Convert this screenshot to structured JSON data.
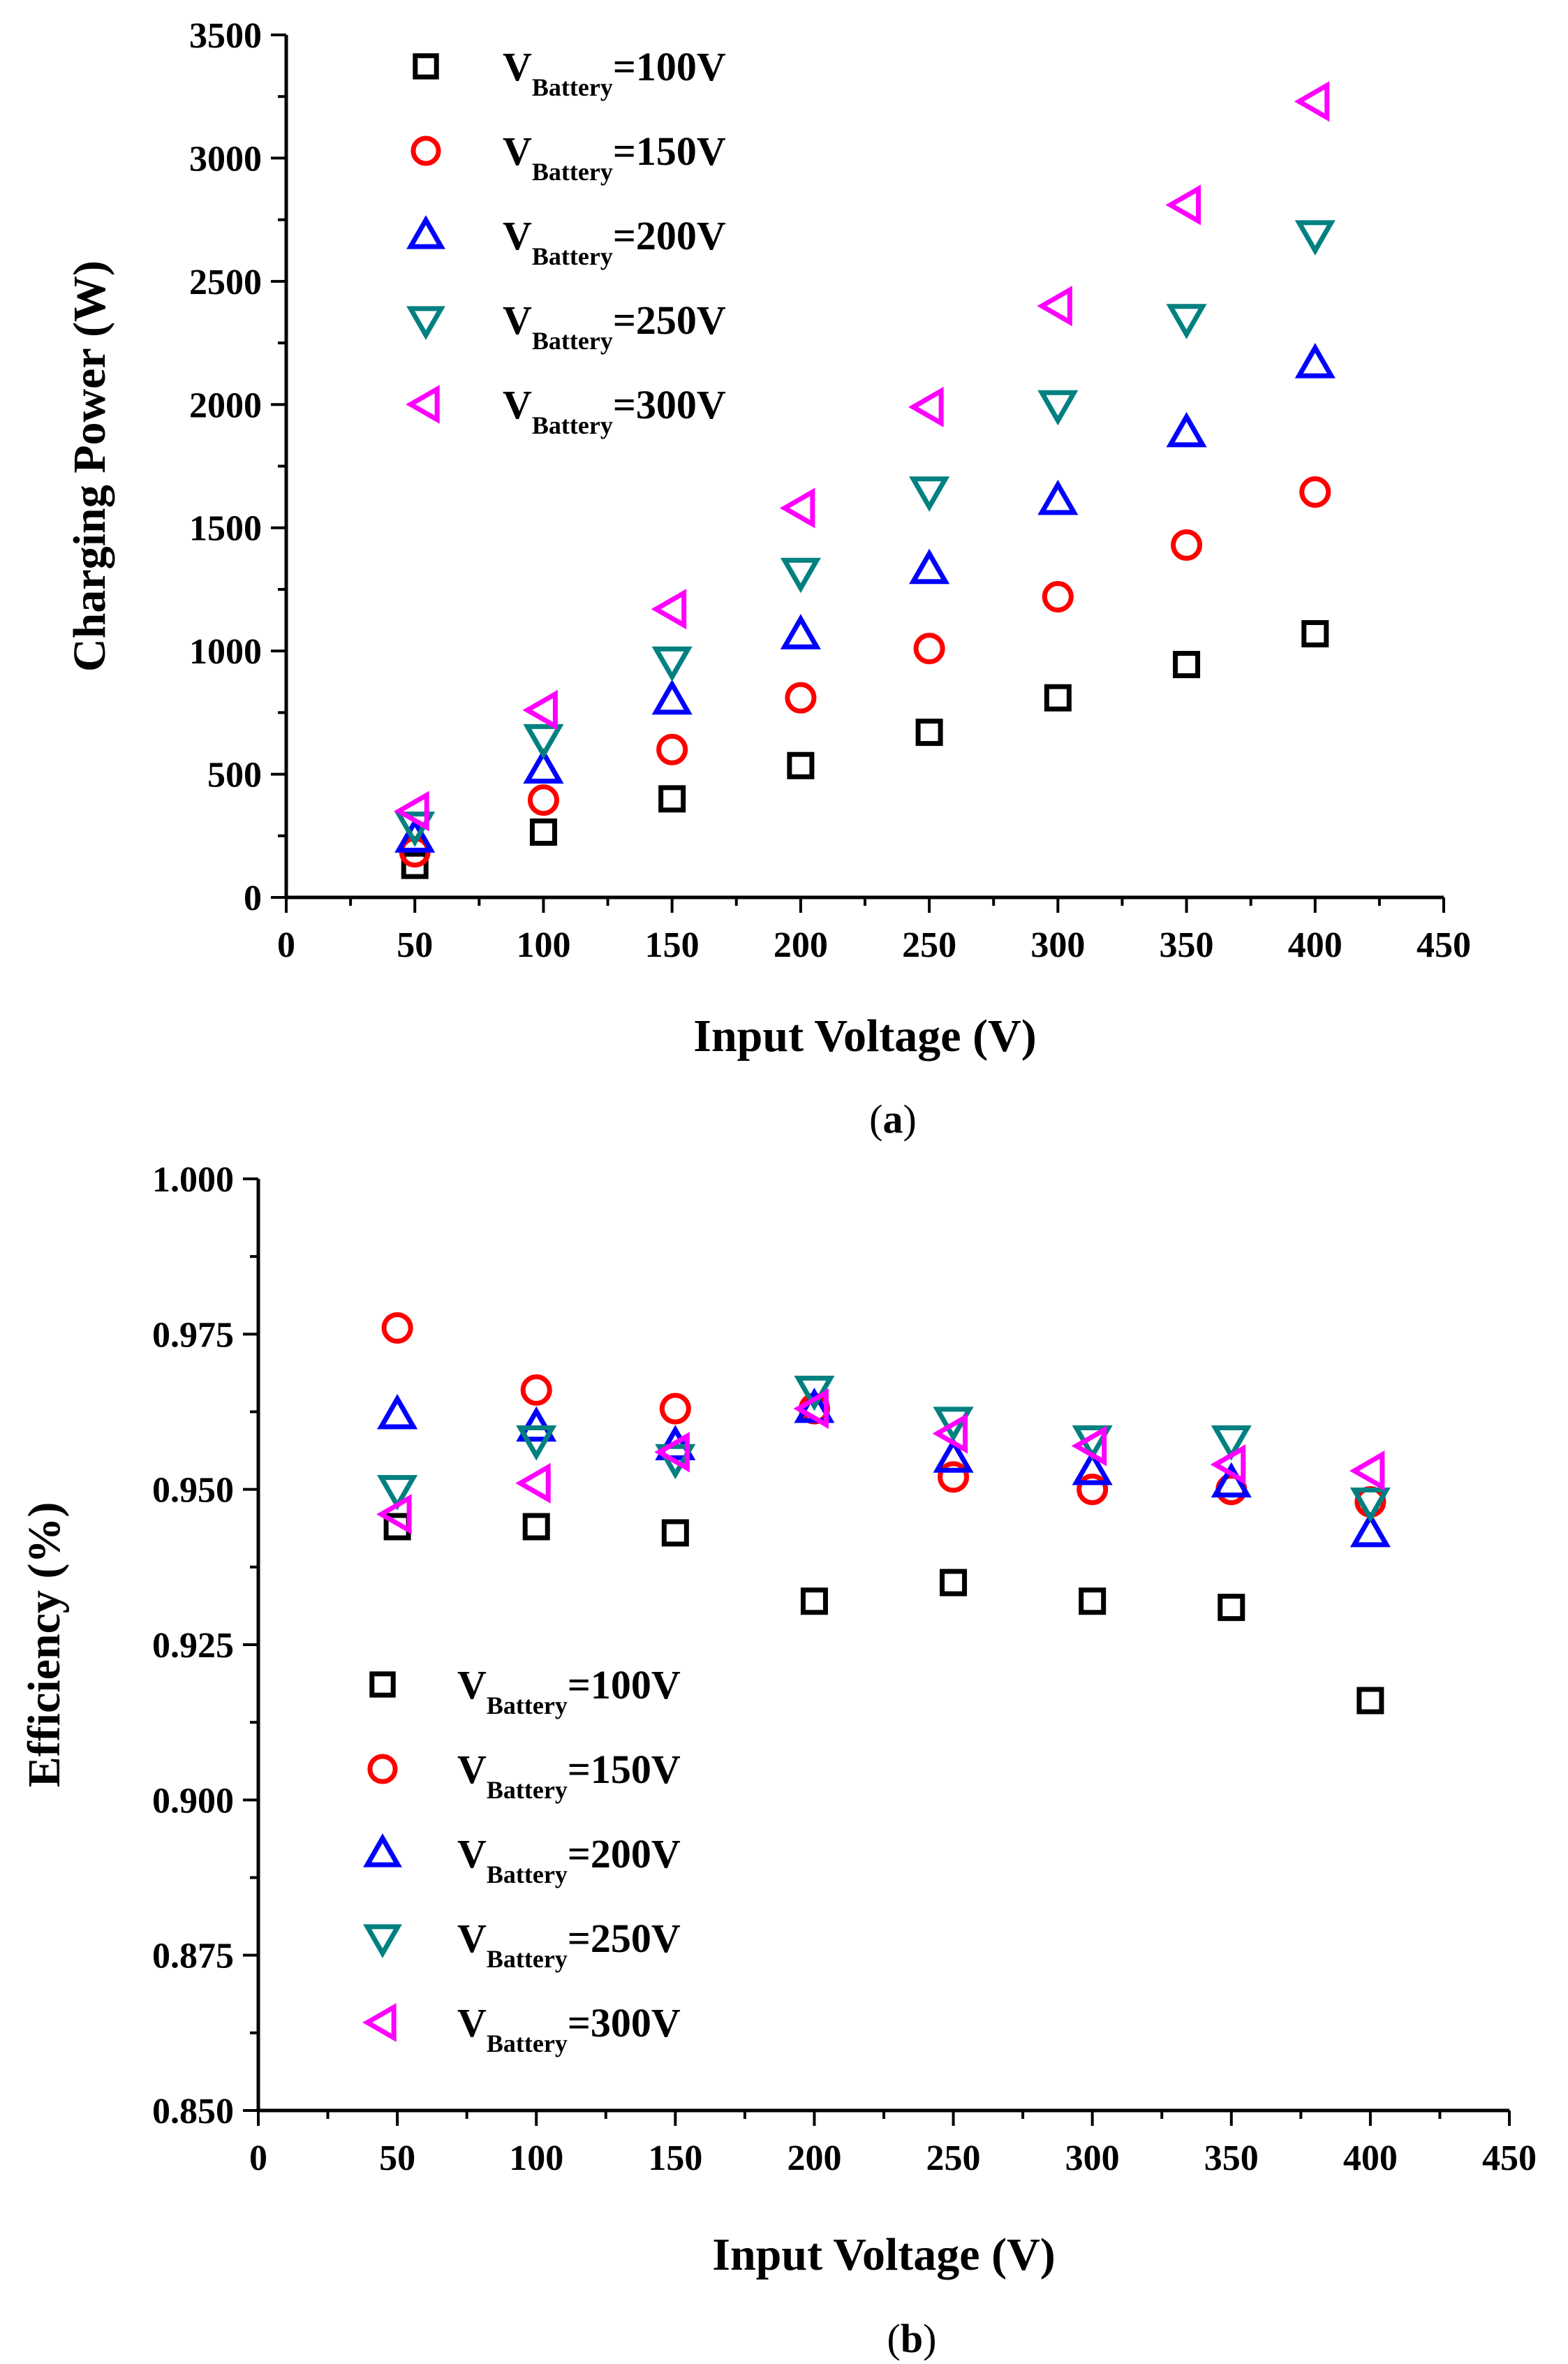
{
  "chart_data": [
    {
      "type": "scatter",
      "caption": "a",
      "xlabel": "Input Voltage (V)",
      "ylabel": "Charging Power (W)",
      "xlim": [
        0,
        450
      ],
      "ylim": [
        0,
        3500
      ],
      "xticks": [
        0,
        50,
        100,
        150,
        200,
        250,
        300,
        350,
        400,
        450
      ],
      "yticks": [
        0,
        500,
        1000,
        1500,
        2000,
        2500,
        3000,
        3500
      ],
      "x": [
        50,
        100,
        150,
        200,
        250,
        300,
        350,
        400
      ],
      "legend_position": "top-left",
      "series": [
        {
          "name_main": "V",
          "name_sub": "Battery",
          "name_suffix": "=100V",
          "marker": "square",
          "color": "#000000",
          "values": [
            130,
            265,
            400,
            535,
            670,
            810,
            945,
            1070
          ]
        },
        {
          "name_main": "V",
          "name_sub": "Battery",
          "name_suffix": "=150V",
          "marker": "circle",
          "color": "#ff0000",
          "values": [
            185,
            395,
            600,
            810,
            1010,
            1220,
            1430,
            1645
          ]
        },
        {
          "name_main": "V",
          "name_sub": "Battery",
          "name_suffix": "=200V",
          "marker": "triangle-up",
          "color": "#0000ff",
          "values": [
            240,
            520,
            800,
            1065,
            1330,
            1610,
            1885,
            2165
          ]
        },
        {
          "name_main": "V",
          "name_sub": "Battery",
          "name_suffix": "=250V",
          "marker": "triangle-down",
          "color": "#008080",
          "values": [
            290,
            645,
            960,
            1320,
            1650,
            2000,
            2350,
            2690
          ]
        },
        {
          "name_main": "V",
          "name_sub": "Battery",
          "name_suffix": "=300V",
          "marker": "triangle-left",
          "color": "#ff00ff",
          "values": [
            350,
            760,
            1170,
            1580,
            1990,
            2400,
            2810,
            3230
          ]
        }
      ]
    },
    {
      "type": "scatter",
      "caption": "b",
      "xlabel": "Input Voltage (V)",
      "ylabel": "Efficiency (%)",
      "xlim": [
        0,
        450
      ],
      "ylim": [
        0.85,
        1.0
      ],
      "xticks": [
        0,
        50,
        100,
        150,
        200,
        250,
        300,
        350,
        400,
        450
      ],
      "yticks": [
        0.85,
        0.875,
        0.9,
        0.925,
        0.95,
        0.975,
        1.0
      ],
      "ytick_labels": [
        "0.850",
        "0.875",
        "0.900",
        "0.925",
        "0.950",
        "0.975",
        "1.000"
      ],
      "x": [
        50,
        100,
        150,
        200,
        250,
        300,
        350,
        400
      ],
      "legend_position": "bottom-left",
      "series": [
        {
          "name_main": "V",
          "name_sub": "Battery",
          "name_suffix": "=100V",
          "marker": "square",
          "color": "#000000",
          "values": [
            0.944,
            0.944,
            0.943,
            0.932,
            0.935,
            0.932,
            0.931,
            0.916
          ]
        },
        {
          "name_main": "V",
          "name_sub": "Battery",
          "name_suffix": "=150V",
          "marker": "circle",
          "color": "#ff0000",
          "values": [
            0.976,
            0.966,
            0.963,
            0.963,
            0.952,
            0.95,
            0.95,
            0.948
          ]
        },
        {
          "name_main": "V",
          "name_sub": "Battery",
          "name_suffix": "=200V",
          "marker": "triangle-up",
          "color": "#0000ff",
          "values": [
            0.962,
            0.96,
            0.957,
            0.963,
            0.955,
            0.953,
            0.951,
            0.943
          ]
        },
        {
          "name_main": "V",
          "name_sub": "Battery",
          "name_suffix": "=250V",
          "marker": "triangle-down",
          "color": "#008080",
          "values": [
            0.95,
            0.958,
            0.955,
            0.966,
            0.961,
            0.958,
            0.958,
            0.948
          ]
        },
        {
          "name_main": "V",
          "name_sub": "Battery",
          "name_suffix": "=300V",
          "marker": "triangle-left",
          "color": "#ff00ff",
          "values": [
            0.946,
            0.951,
            0.956,
            0.963,
            0.959,
            0.957,
            0.954,
            0.953
          ]
        }
      ]
    }
  ]
}
